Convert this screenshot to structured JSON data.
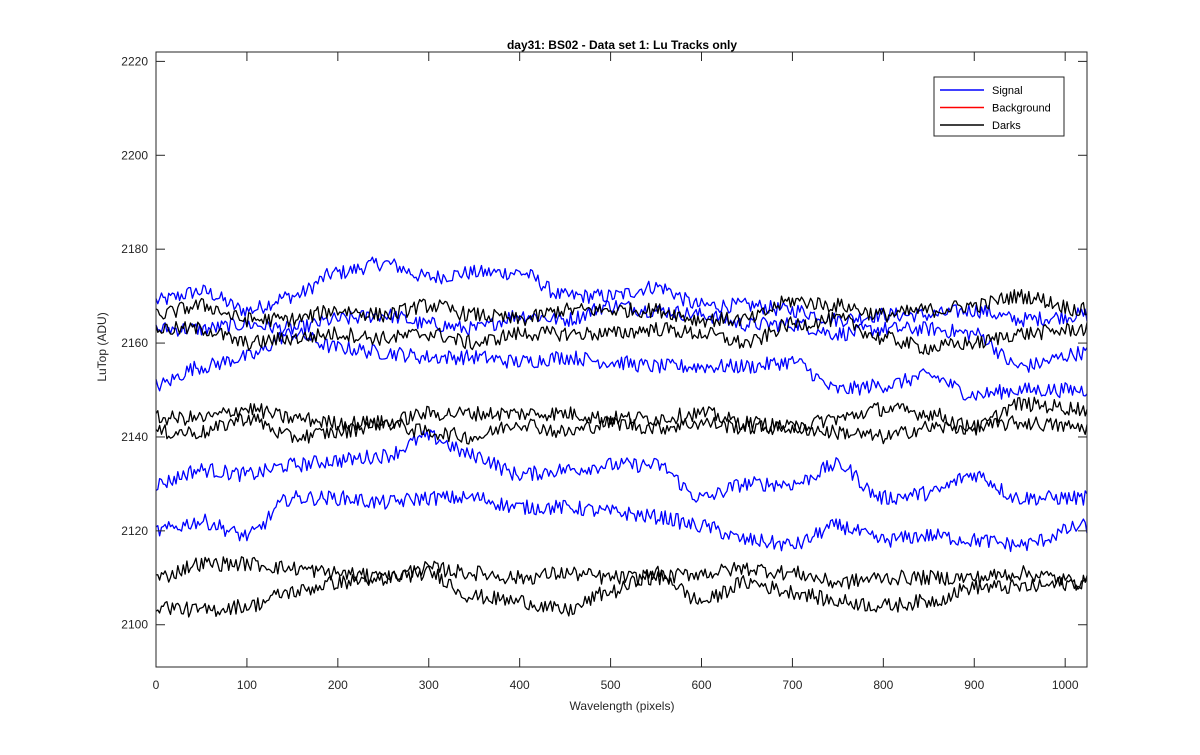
{
  "chart_data": {
    "type": "line",
    "title": "day31: BS02 - Data set 1: Lu Tracks only",
    "xlabel": "Wavelength (pixels)",
    "ylabel": "LuTop (ADU)",
    "xlim": [
      0,
      1024
    ],
    "ylim": [
      2091,
      2222
    ],
    "xticks": [
      0,
      100,
      200,
      300,
      400,
      500,
      600,
      700,
      800,
      900,
      1000
    ],
    "yticks": [
      2100,
      2120,
      2140,
      2160,
      2180,
      2200,
      2220
    ],
    "grid": false,
    "legend": {
      "position": "top-right",
      "entries": [
        {
          "label": "Signal",
          "color": "#0000ff"
        },
        {
          "label": "Background",
          "color": "#ff0000"
        },
        {
          "label": "Darks",
          "color": "#000000"
        }
      ]
    },
    "series": [
      {
        "group": "Signal",
        "color": "#0000ff",
        "x": [
          0,
          50,
          100,
          150,
          200,
          250,
          300,
          350,
          400,
          450,
          500,
          550,
          600,
          650,
          700,
          750,
          800,
          850,
          900,
          950,
          1024
        ],
        "y": [
          2169,
          2171,
          2167,
          2170,
          2175,
          2177,
          2174,
          2175,
          2175,
          2170,
          2170,
          2172,
          2168,
          2168,
          2167,
          2165,
          2166,
          2166,
          2167,
          2165,
          2166
        ]
      },
      {
        "group": "Signal",
        "color": "#0000ff",
        "x": [
          0,
          50,
          100,
          150,
          200,
          250,
          300,
          350,
          400,
          450,
          500,
          550,
          600,
          650,
          700,
          750,
          800,
          850,
          900,
          950,
          1024
        ],
        "y": [
          2163,
          2163,
          2164,
          2163,
          2165,
          2166,
          2164,
          2163,
          2166,
          2165,
          2168,
          2167,
          2166,
          2164,
          2164,
          2162,
          2163,
          2163,
          2162,
          2155,
          2158
        ]
      },
      {
        "group": "Signal",
        "color": "#0000ff",
        "x": [
          0,
          50,
          100,
          150,
          200,
          250,
          300,
          350,
          400,
          450,
          500,
          550,
          600,
          650,
          700,
          750,
          800,
          850,
          900,
          950,
          1024
        ],
        "y": [
          2151,
          2155,
          2157,
          2162,
          2159,
          2158,
          2157,
          2157,
          2156,
          2157,
          2156,
          2155,
          2155,
          2155,
          2156,
          2150,
          2151,
          2153,
          2149,
          2150,
          2150
        ]
      },
      {
        "group": "Signal",
        "color": "#0000ff",
        "x": [
          0,
          50,
          100,
          150,
          200,
          250,
          300,
          350,
          400,
          450,
          500,
          550,
          600,
          650,
          700,
          750,
          800,
          850,
          900,
          950,
          1024
        ],
        "y": [
          2130,
          2133,
          2132,
          2134,
          2135,
          2136,
          2140,
          2136,
          2132,
          2133,
          2134,
          2134,
          2127,
          2130,
          2130,
          2134,
          2127,
          2128,
          2132,
          2127,
          2127
        ]
      },
      {
        "group": "Signal",
        "color": "#0000ff",
        "x": [
          0,
          50,
          100,
          150,
          200,
          250,
          300,
          350,
          400,
          450,
          500,
          550,
          600,
          650,
          700,
          750,
          800,
          850,
          900,
          950,
          1024
        ],
        "y": [
          2120,
          2122,
          2119,
          2127,
          2127,
          2126,
          2127,
          2127,
          2125,
          2125,
          2124,
          2123,
          2121,
          2118,
          2117,
          2121,
          2118,
          2119,
          2118,
          2117,
          2121
        ]
      },
      {
        "group": "Darks",
        "color": "#000000",
        "x": [
          0,
          50,
          100,
          150,
          200,
          250,
          300,
          350,
          400,
          450,
          500,
          550,
          600,
          650,
          700,
          750,
          800,
          850,
          900,
          950,
          1024
        ],
        "y": [
          2166,
          2168,
          2165,
          2165,
          2167,
          2166,
          2168,
          2166,
          2165,
          2167,
          2167,
          2167,
          2165,
          2165,
          2169,
          2168,
          2166,
          2167,
          2168,
          2170,
          2167
        ]
      },
      {
        "group": "Darks",
        "color": "#000000",
        "x": [
          0,
          50,
          100,
          150,
          200,
          250,
          300,
          350,
          400,
          450,
          500,
          550,
          600,
          650,
          700,
          750,
          800,
          850,
          900,
          950,
          1024
        ],
        "y": [
          2163,
          2163,
          2160,
          2161,
          2162,
          2161,
          2162,
          2160,
          2162,
          2162,
          2162,
          2163,
          2162,
          2160,
          2164,
          2165,
          2161,
          2159,
          2160,
          2162,
          2163
        ]
      },
      {
        "group": "Darks",
        "color": "#000000",
        "x": [
          0,
          50,
          100,
          150,
          200,
          250,
          300,
          350,
          400,
          450,
          500,
          550,
          600,
          650,
          700,
          750,
          800,
          850,
          900,
          950,
          1024
        ],
        "y": [
          2144,
          2144,
          2146,
          2144,
          2143,
          2143,
          2145,
          2145,
          2145,
          2145,
          2144,
          2144,
          2145,
          2143,
          2142,
          2144,
          2146,
          2145,
          2142,
          2147,
          2146
        ]
      },
      {
        "group": "Darks",
        "color": "#000000",
        "x": [
          0,
          50,
          100,
          150,
          200,
          250,
          300,
          350,
          400,
          450,
          500,
          550,
          600,
          650,
          700,
          750,
          800,
          850,
          900,
          950,
          1024
        ],
        "y": [
          2141,
          2141,
          2144,
          2140,
          2141,
          2143,
          2141,
          2140,
          2143,
          2141,
          2143,
          2142,
          2143,
          2142,
          2142,
          2141,
          2140,
          2142,
          2142,
          2143,
          2142
        ]
      },
      {
        "group": "Darks",
        "color": "#000000",
        "x": [
          0,
          50,
          100,
          150,
          200,
          250,
          300,
          350,
          400,
          450,
          500,
          550,
          600,
          650,
          700,
          750,
          800,
          850,
          900,
          950,
          1024
        ],
        "y": [
          2110,
          2113,
          2113,
          2112,
          2111,
          2110,
          2112,
          2111,
          2110,
          2111,
          2110,
          2110,
          2111,
          2112,
          2111,
          2109,
          2110,
          2110,
          2110,
          2111,
          2109
        ]
      },
      {
        "group": "Darks",
        "color": "#000000",
        "x": [
          0,
          50,
          100,
          150,
          200,
          250,
          300,
          350,
          400,
          450,
          500,
          550,
          600,
          650,
          700,
          750,
          800,
          850,
          900,
          950,
          1024
        ],
        "y": [
          2104,
          2103,
          2104,
          2107,
          2109,
          2110,
          2111,
          2106,
          2105,
          2103,
          2107,
          2111,
          2105,
          2109,
          2107,
          2105,
          2104,
          2105,
          2108,
          2108,
          2109
        ]
      }
    ]
  }
}
